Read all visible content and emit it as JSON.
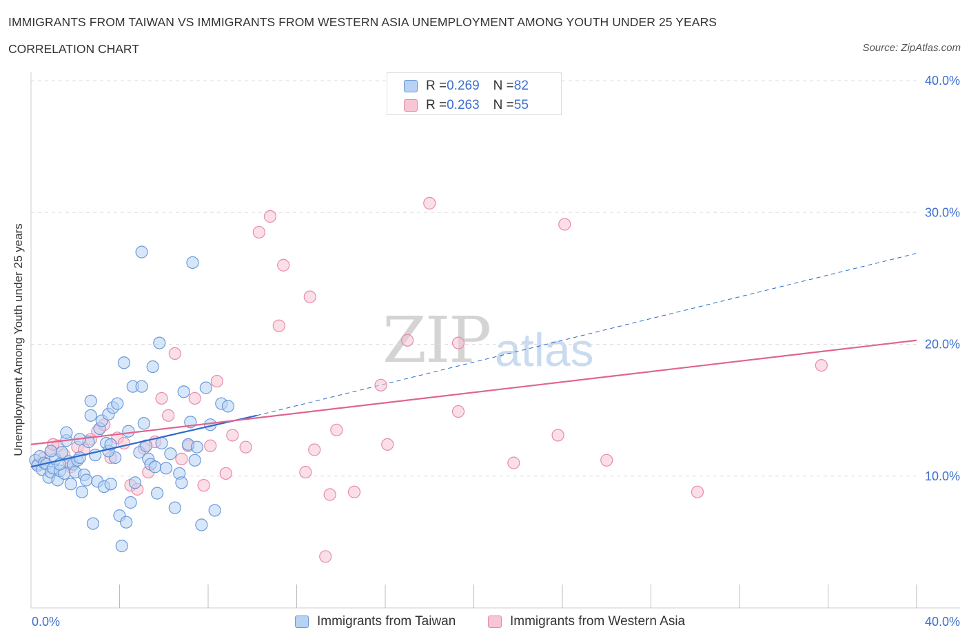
{
  "header": {
    "title": "IMMIGRANTS FROM TAIWAN VS IMMIGRANTS FROM WESTERN ASIA UNEMPLOYMENT AMONG YOUTH UNDER 25 YEARS",
    "subtitle": "CORRELATION CHART",
    "source": "Source: ZipAtlas.com"
  },
  "watermark": {
    "zip": "ZIP",
    "atlas": "atlas"
  },
  "legend": {
    "rows": [
      {
        "r_label": "R = ",
        "r_value": "0.269",
        "n_label": "N = ",
        "n_value": "82"
      },
      {
        "r_label": "R = ",
        "r_value": "0.263",
        "n_label": "N = ",
        "n_value": "55"
      }
    ]
  },
  "bottom_legend": {
    "taiwan": "Immigrants from Taiwan",
    "western_asia": "Immigrants from Western Asia"
  },
  "colors": {
    "taiwan_fill": "#b8d2f4",
    "taiwan_stroke": "#6a9ad8",
    "taiwan_line": "#2d6bc9",
    "wasia_fill": "#f7c5d4",
    "wasia_stroke": "#e88aa8",
    "wasia_line": "#e0648f",
    "grid": "#dddddd",
    "tick_text": "#3b6ecf"
  },
  "chart_data": {
    "type": "scatter",
    "title": "IMMIGRANTS FROM TAIWAN VS IMMIGRANTS FROM WESTERN ASIA UNEMPLOYMENT AMONG YOUTH UNDER 25 YEARS",
    "xlabel": "",
    "ylabel": "Unemployment Among Youth under 25 years",
    "xlim": [
      0,
      40
    ],
    "ylim": [
      0,
      40
    ],
    "x_tick_labels": [
      "0.0%",
      "40.0%"
    ],
    "y_tick_values": [
      10,
      20,
      30,
      40
    ],
    "y_tick_labels": [
      "10.0%",
      "20.0%",
      "30.0%",
      "40.0%"
    ],
    "series": [
      {
        "name": "Immigrants from Taiwan",
        "R": 0.269,
        "N": 82,
        "trend": {
          "x": [
            0,
            10.2
          ],
          "y": [
            10.7,
            14.6
          ],
          "extended_to": [
            40,
            26.9
          ]
        },
        "points": [
          [
            0.2,
            11.2
          ],
          [
            0.3,
            10.8
          ],
          [
            0.4,
            11.5
          ],
          [
            0.5,
            10.5
          ],
          [
            0.6,
            11.0
          ],
          [
            0.7,
            10.9
          ],
          [
            0.8,
            9.9
          ],
          [
            0.9,
            10.3
          ],
          [
            1.0,
            10.6
          ],
          [
            1.1,
            11.3
          ],
          [
            1.2,
            9.7
          ],
          [
            1.3,
            10.4
          ],
          [
            1.4,
            11.8
          ],
          [
            1.5,
            10.2
          ],
          [
            1.6,
            12.7
          ],
          [
            1.7,
            11.1
          ],
          [
            1.8,
            9.4
          ],
          [
            1.9,
            10.9
          ],
          [
            2.0,
            10.3
          ],
          [
            2.1,
            11.2
          ],
          [
            2.2,
            11.4
          ],
          [
            2.3,
            8.8
          ],
          [
            2.4,
            10.1
          ],
          [
            2.5,
            9.7
          ],
          [
            2.6,
            12.6
          ],
          [
            2.7,
            15.7
          ],
          [
            2.8,
            6.4
          ],
          [
            2.9,
            11.6
          ],
          [
            3.0,
            9.6
          ],
          [
            3.1,
            13.6
          ],
          [
            3.2,
            14.2
          ],
          [
            3.3,
            9.2
          ],
          [
            3.4,
            12.5
          ],
          [
            3.5,
            14.7
          ],
          [
            3.6,
            9.4
          ],
          [
            3.7,
            15.2
          ],
          [
            3.8,
            11.4
          ],
          [
            3.9,
            15.5
          ],
          [
            4.0,
            7.0
          ],
          [
            4.1,
            4.7
          ],
          [
            4.2,
            18.6
          ],
          [
            4.3,
            6.5
          ],
          [
            4.4,
            13.4
          ],
          [
            4.5,
            8.0
          ],
          [
            4.6,
            16.8
          ],
          [
            4.7,
            9.5
          ],
          [
            4.9,
            11.8
          ],
          [
            5.0,
            16.8
          ],
          [
            5.1,
            14.0
          ],
          [
            5.2,
            12.3
          ],
          [
            5.3,
            11.3
          ],
          [
            5.4,
            10.9
          ],
          [
            5.5,
            18.3
          ],
          [
            5.6,
            10.7
          ],
          [
            5.7,
            8.7
          ],
          [
            5.8,
            20.1
          ],
          [
            5.9,
            12.5
          ],
          [
            6.1,
            10.6
          ],
          [
            6.3,
            11.7
          ],
          [
            6.5,
            7.6
          ],
          [
            6.7,
            10.2
          ],
          [
            6.8,
            9.5
          ],
          [
            6.9,
            16.4
          ],
          [
            7.1,
            12.4
          ],
          [
            7.2,
            14.1
          ],
          [
            7.4,
            11.2
          ],
          [
            7.5,
            12.2
          ],
          [
            7.7,
            6.3
          ],
          [
            7.9,
            16.7
          ],
          [
            8.1,
            13.9
          ],
          [
            8.3,
            7.4
          ],
          [
            8.6,
            15.5
          ],
          [
            8.9,
            15.3
          ],
          [
            1.6,
            13.3
          ],
          [
            2.7,
            14.6
          ],
          [
            3.5,
            11.9
          ],
          [
            5.0,
            27.0
          ],
          [
            7.3,
            26.2
          ],
          [
            3.6,
            12.4
          ],
          [
            1.3,
            10.9
          ],
          [
            0.9,
            11.9
          ],
          [
            2.2,
            12.8
          ]
        ]
      },
      {
        "name": "Immigrants from Western Asia",
        "R": 0.263,
        "N": 55,
        "trend": {
          "x": [
            0,
            40
          ],
          "y": [
            12.4,
            20.3
          ]
        },
        "points": [
          [
            0.3,
            10.9
          ],
          [
            0.6,
            11.4
          ],
          [
            0.9,
            11.9
          ],
          [
            1.2,
            12.3
          ],
          [
            1.5,
            11.6
          ],
          [
            1.8,
            10.7
          ],
          [
            2.1,
            12.2
          ],
          [
            2.4,
            12.0
          ],
          [
            2.7,
            12.8
          ],
          [
            3.0,
            13.4
          ],
          [
            3.3,
            13.9
          ],
          [
            3.6,
            11.4
          ],
          [
            3.9,
            12.9
          ],
          [
            4.2,
            12.5
          ],
          [
            4.5,
            9.3
          ],
          [
            4.8,
            9.0
          ],
          [
            5.1,
            12.1
          ],
          [
            5.3,
            10.3
          ],
          [
            5.6,
            12.6
          ],
          [
            5.9,
            15.9
          ],
          [
            6.2,
            14.6
          ],
          [
            6.5,
            19.3
          ],
          [
            6.8,
            11.3
          ],
          [
            7.1,
            12.3
          ],
          [
            7.4,
            15.9
          ],
          [
            7.8,
            9.3
          ],
          [
            8.1,
            12.3
          ],
          [
            8.4,
            17.2
          ],
          [
            8.8,
            10.2
          ],
          [
            9.1,
            13.1
          ],
          [
            9.7,
            12.2
          ],
          [
            10.3,
            28.5
          ],
          [
            10.8,
            29.7
          ],
          [
            11.2,
            21.4
          ],
          [
            11.4,
            26.0
          ],
          [
            12.4,
            10.3
          ],
          [
            12.6,
            23.6
          ],
          [
            12.8,
            12.0
          ],
          [
            13.3,
            3.9
          ],
          [
            13.5,
            8.6
          ],
          [
            13.8,
            13.5
          ],
          [
            14.6,
            8.8
          ],
          [
            15.8,
            16.9
          ],
          [
            16.1,
            12.4
          ],
          [
            17.0,
            20.3
          ],
          [
            18.0,
            30.7
          ],
          [
            19.3,
            14.9
          ],
          [
            19.3,
            20.1
          ],
          [
            21.8,
            11.0
          ],
          [
            23.8,
            13.1
          ],
          [
            24.1,
            29.1
          ],
          [
            26.0,
            11.2
          ],
          [
            30.1,
            8.8
          ],
          [
            35.7,
            18.4
          ],
          [
            1.0,
            12.4
          ]
        ]
      }
    ]
  }
}
